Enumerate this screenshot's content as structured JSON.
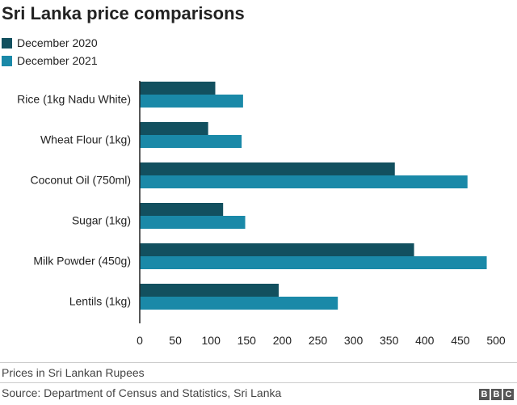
{
  "title": "Sri Lanka price comparisons",
  "legend": [
    {
      "label": "December 2020",
      "color": "#12505f"
    },
    {
      "label": "December 2021",
      "color": "#1a89a8"
    }
  ],
  "chart_data": {
    "type": "bar",
    "orientation": "horizontal",
    "title": "Sri Lanka price comparisons",
    "categories": [
      "Rice (1kg Nadu White)",
      "Wheat Flour (1kg)",
      "Coconut Oil (750ml)",
      "Sugar (1kg)",
      "Milk Powder (450g)",
      "Lentils (1kg)"
    ],
    "series": [
      {
        "name": "December 2020",
        "color": "#12505f",
        "values": [
          106,
          96,
          358,
          117,
          385,
          195
        ]
      },
      {
        "name": "December 2021",
        "color": "#1a89a8",
        "values": [
          145,
          143,
          460,
          148,
          487,
          278
        ]
      }
    ],
    "xlim": [
      0,
      500
    ],
    "xticks": [
      0,
      50,
      100,
      150,
      200,
      250,
      300,
      350,
      400,
      450,
      500
    ],
    "grid": false,
    "legend_position": "top-left"
  },
  "note": "Prices in Sri Lankan Rupees",
  "source": "Source: Department of Census and Statistics, Sri Lanka",
  "logo": [
    "B",
    "B",
    "C"
  ]
}
